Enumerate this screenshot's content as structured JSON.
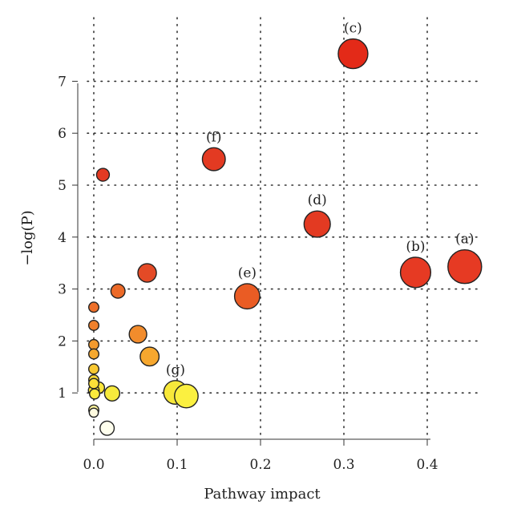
{
  "chart_data": {
    "type": "scatter",
    "title": "",
    "xlabel": "Pathway impact",
    "ylabel": "−log(P)",
    "xlim": [
      0,
      0.45
    ],
    "ylim": [
      0.2,
      8
    ],
    "x_ticks": [
      "0.0",
      "0.1",
      "0.2",
      "0.3",
      "0.4"
    ],
    "y_ticks": [
      "1",
      "2",
      "3",
      "4",
      "5",
      "6",
      "7"
    ],
    "grid": true,
    "color_scale": {
      "low": "#fffff2",
      "mid": "#ffee30",
      "high": "#e32a18"
    },
    "points": [
      {
        "x": 0.445,
        "y": 3.43,
        "label": "(a)",
        "color": "#e63a23",
        "size": 1.0
      },
      {
        "x": 0.386,
        "y": 3.32,
        "label": "(b)",
        "color": "#e63a23",
        "size": 0.9
      },
      {
        "x": 0.311,
        "y": 7.53,
        "label": "(c)",
        "color": "#e32a18",
        "size": 0.88
      },
      {
        "x": 0.268,
        "y": 4.25,
        "label": "(d)",
        "color": "#e33a22",
        "size": 0.78
      },
      {
        "x": 0.184,
        "y": 2.86,
        "label": "(e)",
        "color": "#ea5c24",
        "size": 0.75
      },
      {
        "x": 0.144,
        "y": 5.5,
        "label": "(f)",
        "color": "#e33a22",
        "size": 0.68
      },
      {
        "x": 0.098,
        "y": 1.01,
        "label": "(g)",
        "color": "#f7e83a",
        "size": 0.7
      },
      {
        "x": 0.111,
        "y": 0.94,
        "label": "",
        "color": "#fbf040",
        "size": 0.7
      },
      {
        "x": 0.011,
        "y": 5.2,
        "label": "",
        "color": "#e33a22",
        "size": 0.38
      },
      {
        "x": 0.064,
        "y": 3.31,
        "label": "",
        "color": "#e44a26",
        "size": 0.55
      },
      {
        "x": 0.029,
        "y": 2.96,
        "label": "",
        "color": "#ec6a28",
        "size": 0.42
      },
      {
        "x": 0.053,
        "y": 2.13,
        "label": "",
        "color": "#f28c2c",
        "size": 0.52
      },
      {
        "x": 0.067,
        "y": 1.7,
        "label": "",
        "color": "#f6a72e",
        "size": 0.56
      },
      {
        "x": 0.022,
        "y": 0.99,
        "label": "",
        "color": "#f7ea3c",
        "size": 0.45
      },
      {
        "x": 0.016,
        "y": 0.32,
        "label": "",
        "color": "#ffffee",
        "size": 0.42
      },
      {
        "x": 0.0,
        "y": 2.65,
        "label": "",
        "color": "#ee702a",
        "size": 0.3
      },
      {
        "x": 0.0,
        "y": 2.3,
        "label": "",
        "color": "#f0802b",
        "size": 0.3
      },
      {
        "x": 0.0,
        "y": 1.93,
        "label": "",
        "color": "#f39a2e",
        "size": 0.3
      },
      {
        "x": 0.0,
        "y": 1.75,
        "label": "",
        "color": "#f5a82f",
        "size": 0.3
      },
      {
        "x": 0.0,
        "y": 1.46,
        "label": "",
        "color": "#f8c832",
        "size": 0.3
      },
      {
        "x": 0.0,
        "y": 1.25,
        "label": "",
        "color": "#fad836",
        "size": 0.3
      },
      {
        "x": 0.0,
        "y": 1.18,
        "label": "",
        "color": "#fbe038",
        "size": 0.3
      },
      {
        "x": 0.006,
        "y": 1.1,
        "label": "",
        "color": "#fbe63a",
        "size": 0.34
      },
      {
        "x": 0.0,
        "y": 1.05,
        "label": "",
        "color": "#fce83a",
        "size": 0.32
      },
      {
        "x": 0.001,
        "y": 0.98,
        "label": "",
        "color": "#fbea3c",
        "size": 0.3
      },
      {
        "x": 0.0,
        "y": 0.67,
        "label": "",
        "color": "#fdf49c",
        "size": 0.3
      },
      {
        "x": 0.0,
        "y": 0.62,
        "label": "",
        "color": "#fffbe0",
        "size": 0.27
      }
    ]
  }
}
